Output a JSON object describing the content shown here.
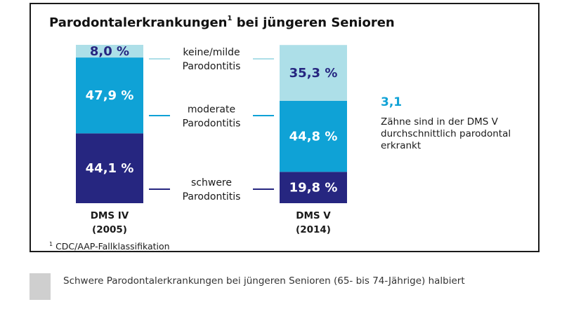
{
  "title": {
    "text": "Parodontalerkrankungen",
    "superscript": "1",
    "rest": " bei jüngeren Senioren"
  },
  "colors": {
    "keine_milde": "#addfe8",
    "moderate": "#0fa2d6",
    "schwere": "#262680",
    "label_dark": "#262680",
    "label_light": "#ffffff",
    "accent": "#0fa2d6"
  },
  "chart_data": {
    "type": "bar",
    "stacked": true,
    "title": "Parodontalerkrankungen¹ bei jüngeren Senioren",
    "categories": [
      "DMS IV\n(2005)",
      "DMS V\n(2014)"
    ],
    "category_lines": [
      [
        "DMS IV",
        "(2005)"
      ],
      [
        "DMS V",
        "(2014)"
      ]
    ],
    "series": [
      {
        "name": "schwere Parodontitis",
        "name_lines": [
          "schwere",
          "Parodontitis"
        ],
        "values": [
          44.1,
          19.8
        ],
        "labels": [
          "44,1 %",
          "19,8 %"
        ]
      },
      {
        "name": "moderate Parodontitis",
        "name_lines": [
          "moderate",
          "Parodontitis"
        ],
        "values": [
          47.9,
          44.8
        ],
        "labels": [
          "47,9 %",
          "44,8 %"
        ]
      },
      {
        "name": "keine/milde Parodontitis",
        "name_lines": [
          "keine/milde",
          "Parodontitis"
        ],
        "values": [
          8.0,
          35.3
        ],
        "labels": [
          "8,0 %",
          "35,3 %"
        ]
      }
    ],
    "ylim": [
      0,
      100
    ],
    "grid": false,
    "legend": "center-between-bars"
  },
  "side_note": {
    "value": "3,1",
    "text": "Zähne sind in der DMS V durchschnittlich parodontal erkrankt"
  },
  "footnote": {
    "marker": "1",
    "text": " CDC/AAP-Fallklassifikation"
  },
  "caption": "Schwere Parodontalerkrankungen bei jüngeren Senioren (65- bis 74-Jährige) halbiert"
}
